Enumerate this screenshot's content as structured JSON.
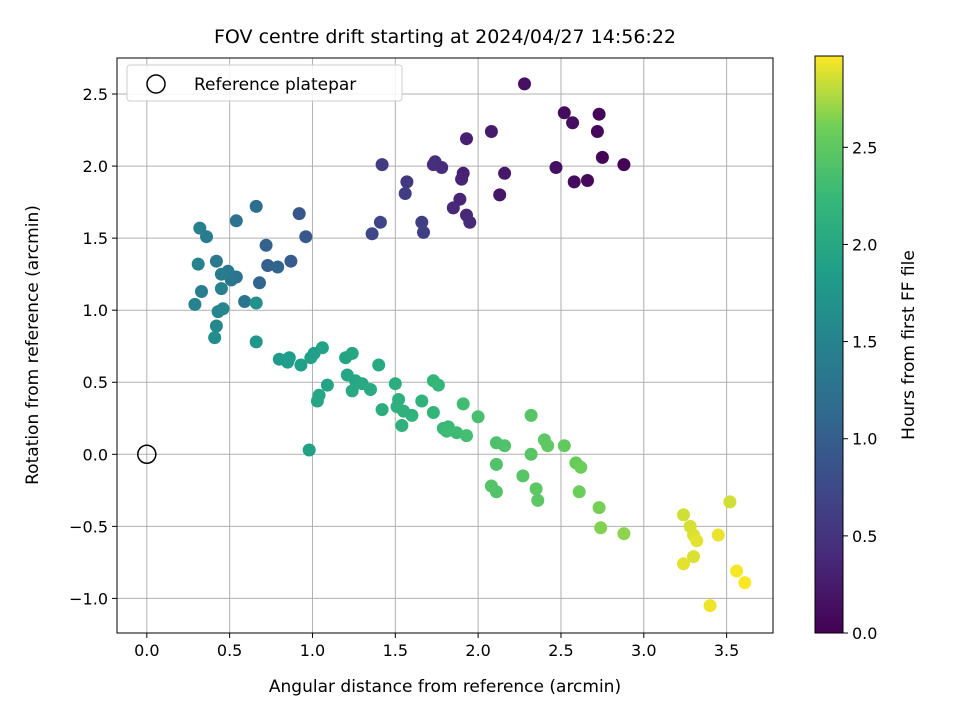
{
  "chart_data": {
    "type": "scatter",
    "title": "FOV centre drift starting at 2024/04/27 14:56:22",
    "xlabel": "Angular distance from reference (arcmin)",
    "ylabel": "Rotation from reference (arcmin)",
    "xlim": [
      -0.18,
      3.78
    ],
    "ylim": [
      -1.24,
      2.75
    ],
    "x_ticks": [
      0.0,
      0.5,
      1.0,
      1.5,
      2.0,
      2.5,
      3.0,
      3.5
    ],
    "x_tick_labels": [
      "0.0",
      "0.5",
      "1.0",
      "1.5",
      "2.0",
      "2.5",
      "3.0",
      "3.5"
    ],
    "y_ticks": [
      -1.0,
      -0.5,
      0.0,
      0.5,
      1.0,
      1.5,
      2.0,
      2.5
    ],
    "y_tick_labels": [
      "−1.0",
      "−0.5",
      "0.0",
      "0.5",
      "1.0",
      "1.5",
      "2.0",
      "2.5"
    ],
    "grid": true,
    "legend": {
      "placement": "top-left",
      "entries": [
        "Reference platepar"
      ]
    },
    "reference_point": {
      "x": 0.0,
      "y": 0.0
    },
    "colorbar": {
      "label": "Hours from first FF file",
      "colormap": "viridis",
      "range": [
        0.0,
        2.97
      ],
      "ticks": [
        0.0,
        0.5,
        1.0,
        1.5,
        2.0,
        2.5
      ],
      "tick_labels": [
        "0.0",
        "0.5",
        "1.0",
        "1.5",
        "2.0",
        "2.5"
      ]
    },
    "points": [
      [
        2.28,
        2.57,
        0.15
      ],
      [
        2.52,
        2.37,
        0.1
      ],
      [
        2.57,
        2.3,
        0.12
      ],
      [
        2.73,
        2.36,
        0.05
      ],
      [
        2.72,
        2.24,
        0.08
      ],
      [
        2.75,
        2.06,
        0.03
      ],
      [
        2.88,
        2.01,
        0.02
      ],
      [
        2.47,
        1.99,
        0.14
      ],
      [
        2.58,
        1.89,
        0.1
      ],
      [
        2.66,
        1.9,
        0.07
      ],
      [
        2.08,
        2.24,
        0.25
      ],
      [
        1.93,
        2.19,
        0.3
      ],
      [
        2.16,
        1.95,
        0.22
      ],
      [
        2.13,
        1.8,
        0.2
      ],
      [
        1.91,
        1.95,
        0.3
      ],
      [
        1.9,
        1.91,
        0.32
      ],
      [
        1.89,
        1.77,
        0.35
      ],
      [
        1.85,
        1.71,
        0.37
      ],
      [
        1.93,
        1.66,
        0.38
      ],
      [
        1.95,
        1.61,
        0.4
      ],
      [
        1.74,
        2.03,
        0.45
      ],
      [
        1.73,
        2.01,
        0.46
      ],
      [
        1.78,
        1.99,
        0.44
      ],
      [
        1.42,
        2.01,
        0.58
      ],
      [
        1.57,
        1.89,
        0.55
      ],
      [
        1.56,
        1.81,
        0.6
      ],
      [
        1.66,
        1.61,
        0.62
      ],
      [
        1.67,
        1.54,
        0.63
      ],
      [
        1.41,
        1.61,
        0.7
      ],
      [
        1.36,
        1.53,
        0.72
      ],
      [
        0.92,
        1.67,
        0.9
      ],
      [
        0.96,
        1.51,
        0.92
      ],
      [
        0.87,
        1.34,
        0.96
      ],
      [
        0.72,
        1.45,
        1.05
      ],
      [
        0.73,
        1.31,
        1.0
      ],
      [
        0.79,
        1.3,
        1.08
      ],
      [
        0.68,
        1.19,
        1.1
      ],
      [
        0.66,
        1.72,
        1.2
      ],
      [
        0.54,
        1.62,
        1.25
      ],
      [
        0.59,
        1.06,
        1.3
      ],
      [
        0.54,
        1.23,
        1.28
      ],
      [
        0.51,
        1.21,
        1.3
      ],
      [
        0.49,
        1.27,
        1.35
      ],
      [
        0.45,
        1.25,
        1.4
      ],
      [
        0.42,
        1.34,
        1.35
      ],
      [
        0.32,
        1.57,
        1.45
      ],
      [
        0.36,
        1.51,
        1.4
      ],
      [
        0.31,
        1.32,
        1.5
      ],
      [
        0.33,
        1.13,
        1.42
      ],
      [
        0.29,
        1.04,
        1.5
      ],
      [
        0.45,
        1.15,
        1.45
      ],
      [
        0.46,
        1.01,
        1.55
      ],
      [
        0.43,
        0.99,
        1.55
      ],
      [
        0.42,
        0.89,
        1.58
      ],
      [
        0.41,
        0.81,
        1.62
      ],
      [
        0.66,
        1.05,
        1.7
      ],
      [
        0.66,
        0.78,
        1.75
      ],
      [
        0.8,
        0.66,
        1.82
      ],
      [
        0.85,
        0.66,
        1.85
      ],
      [
        0.86,
        0.67,
        1.85
      ],
      [
        0.85,
        0.64,
        1.85
      ],
      [
        0.93,
        0.62,
        1.88
      ],
      [
        0.99,
        0.67,
        1.9
      ],
      [
        1.01,
        0.7,
        1.88
      ],
      [
        1.06,
        0.74,
        1.92
      ],
      [
        1.09,
        0.48,
        1.95
      ],
      [
        1.04,
        0.41,
        1.98
      ],
      [
        1.03,
        0.37,
        1.98
      ],
      [
        0.98,
        0.03,
        1.9
      ],
      [
        1.2,
        0.67,
        1.95
      ],
      [
        1.24,
        0.7,
        1.97
      ],
      [
        1.21,
        0.55,
        1.97
      ],
      [
        1.26,
        0.51,
        1.98
      ],
      [
        1.3,
        0.49,
        2.0
      ],
      [
        1.24,
        0.44,
        2.0
      ],
      [
        1.35,
        0.45,
        2.03
      ],
      [
        1.4,
        0.62,
        2.02
      ],
      [
        1.42,
        0.31,
        2.08
      ],
      [
        1.5,
        0.49,
        2.08
      ],
      [
        1.52,
        0.38,
        2.12
      ],
      [
        1.51,
        0.33,
        2.12
      ],
      [
        1.55,
        0.3,
        2.13
      ],
      [
        1.54,
        0.2,
        2.12
      ],
      [
        1.6,
        0.27,
        2.15
      ],
      [
        1.66,
        0.37,
        2.15
      ],
      [
        1.73,
        0.51,
        2.2
      ],
      [
        1.76,
        0.48,
        2.22
      ],
      [
        1.73,
        0.29,
        2.2
      ],
      [
        1.79,
        0.18,
        2.25
      ],
      [
        1.82,
        0.19,
        2.26
      ],
      [
        1.81,
        0.16,
        2.28
      ],
      [
        1.87,
        0.15,
        2.28
      ],
      [
        1.91,
        0.35,
        2.3
      ],
      [
        1.93,
        0.13,
        2.33
      ],
      [
        2.0,
        0.26,
        2.35
      ],
      [
        2.11,
        0.08,
        2.38
      ],
      [
        2.16,
        0.06,
        2.4
      ],
      [
        2.11,
        -0.07,
        2.4
      ],
      [
        2.08,
        -0.22,
        2.42
      ],
      [
        2.11,
        -0.26,
        2.42
      ],
      [
        2.27,
        -0.15,
        2.45
      ],
      [
        2.32,
        0.0,
        2.45
      ],
      [
        2.35,
        -0.24,
        2.48
      ],
      [
        2.36,
        -0.32,
        2.48
      ],
      [
        2.32,
        0.27,
        2.45
      ],
      [
        2.4,
        0.1,
        2.48
      ],
      [
        2.42,
        0.06,
        2.5
      ],
      [
        2.52,
        0.06,
        2.52
      ],
      [
        2.59,
        -0.06,
        2.55
      ],
      [
        2.62,
        -0.09,
        2.58
      ],
      [
        2.61,
        -0.26,
        2.58
      ],
      [
        2.73,
        -0.37,
        2.62
      ],
      [
        2.74,
        -0.51,
        2.65
      ],
      [
        2.88,
        -0.55,
        2.68
      ],
      [
        3.24,
        -0.42,
        2.85
      ],
      [
        3.28,
        -0.5,
        2.87
      ],
      [
        3.3,
        -0.56,
        2.88
      ],
      [
        3.32,
        -0.6,
        2.9
      ],
      [
        3.3,
        -0.71,
        2.88
      ],
      [
        3.24,
        -0.76,
        2.9
      ],
      [
        3.45,
        -0.56,
        2.92
      ],
      [
        3.52,
        -0.33,
        2.85
      ],
      [
        3.56,
        -0.81,
        2.95
      ],
      [
        3.61,
        -0.89,
        2.97
      ],
      [
        3.4,
        -1.05,
        2.93
      ]
    ]
  }
}
